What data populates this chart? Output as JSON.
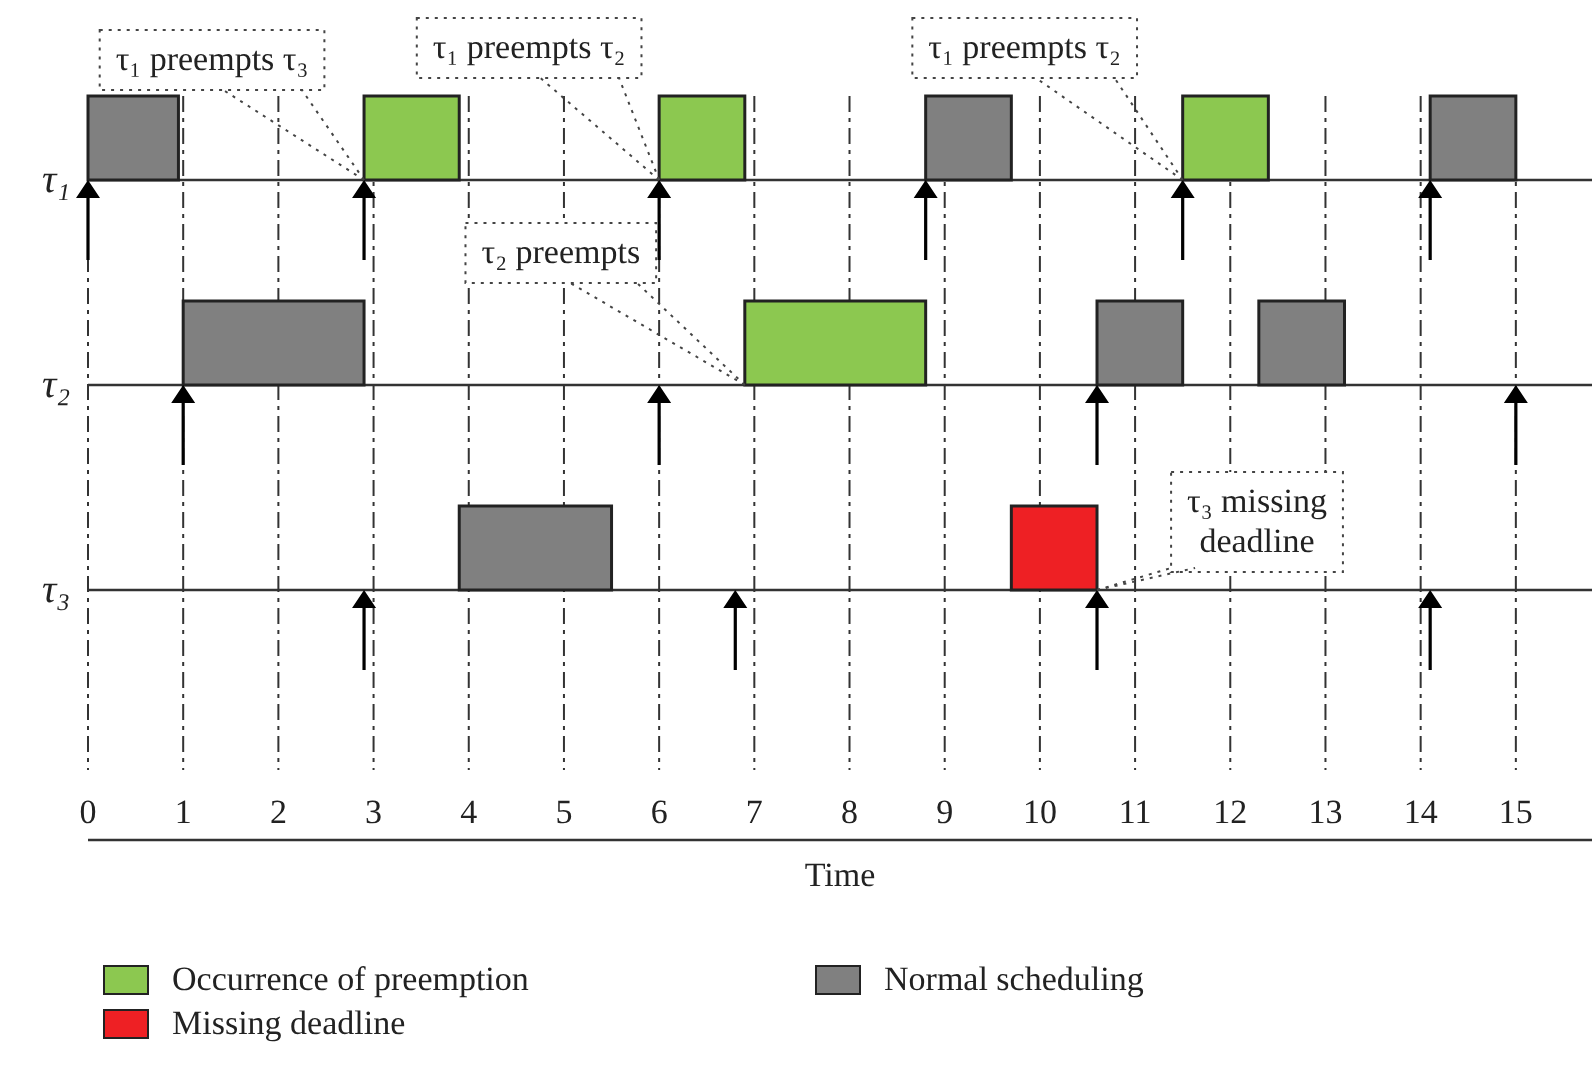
{
  "chart_data": {
    "type": "bar",
    "orientation": "horizontal",
    "xlabel": "Time",
    "categories": [
      "τ₁",
      "τ₂",
      "τ₃"
    ],
    "xlim": [
      0,
      15.8
    ],
    "xticks": [
      0,
      1,
      2,
      3,
      4,
      5,
      6,
      7,
      8,
      9,
      10,
      11,
      12,
      13,
      14,
      15
    ],
    "grid": true,
    "legend": "bottom",
    "series": [
      {
        "name": "Occurrence of preemption",
        "color": "#8cc850",
        "base": [
          2.9,
          6.9,
          null
        ],
        "values": [
          1.0,
          1.9,
          null
        ]
      },
      {
        "name": "Normal scheduling",
        "color": "#808080",
        "base": [
          0,
          1.0,
          3.9
        ],
        "values": [
          0.95,
          1.9,
          1.6
        ]
      },
      {
        "name": "Missing deadline",
        "color": "#ee2024",
        "base": [
          null,
          null,
          9.7
        ],
        "values": [
          null,
          null,
          0.9
        ]
      },
      {
        "color": "#8cc850",
        "base": [
          6.0,
          null,
          null
        ],
        "values": [
          0.9,
          null,
          null
        ]
      },
      {
        "color": "#8cc850",
        "base": [
          11.5,
          null,
          null
        ],
        "values": [
          0.9,
          null,
          null
        ]
      },
      {
        "color": "#808080",
        "base": [
          8.8,
          10.6,
          null
        ],
        "values": [
          0.9,
          0.9,
          null
        ]
      },
      {
        "color": "#808080",
        "base": [
          14.1,
          12.3,
          null
        ],
        "values": [
          0.9,
          0.9,
          null
        ]
      },
      {
        "type": "scatter",
        "marker": "triangle",
        "color": "#000000",
        "x": [
          "τ₁",
          "τ₁",
          "τ₁",
          "τ₁",
          "τ₁",
          "τ₁",
          "τ₂",
          "τ₂",
          "τ₂",
          "τ₂",
          "τ₃",
          "τ₃",
          "τ₃",
          "τ₃"
        ],
        "values": [
          0,
          2.9,
          6.0,
          8.8,
          11.5,
          14.1,
          1.0,
          6.0,
          10.6,
          15.0,
          2.9,
          6.8,
          10.6,
          14.1
        ]
      }
    ],
    "annotations": [
      {
        "text": "τ₁ preempts τ₃",
        "x": 2.9,
        "y": "τ₁"
      },
      {
        "text": "τ₁ preempts τ₂",
        "x": 6.0,
        "y": "τ₁"
      },
      {
        "text": "τ₂ preempts",
        "x": 6.9,
        "y": "τ₂"
      },
      {
        "text": "τ₁ preempts τ₂",
        "x": 11.5,
        "y": "τ₁"
      },
      {
        "text": "τ₃ missing deadline",
        "x": 10.6,
        "y": "τ₃"
      }
    ]
  }
}
